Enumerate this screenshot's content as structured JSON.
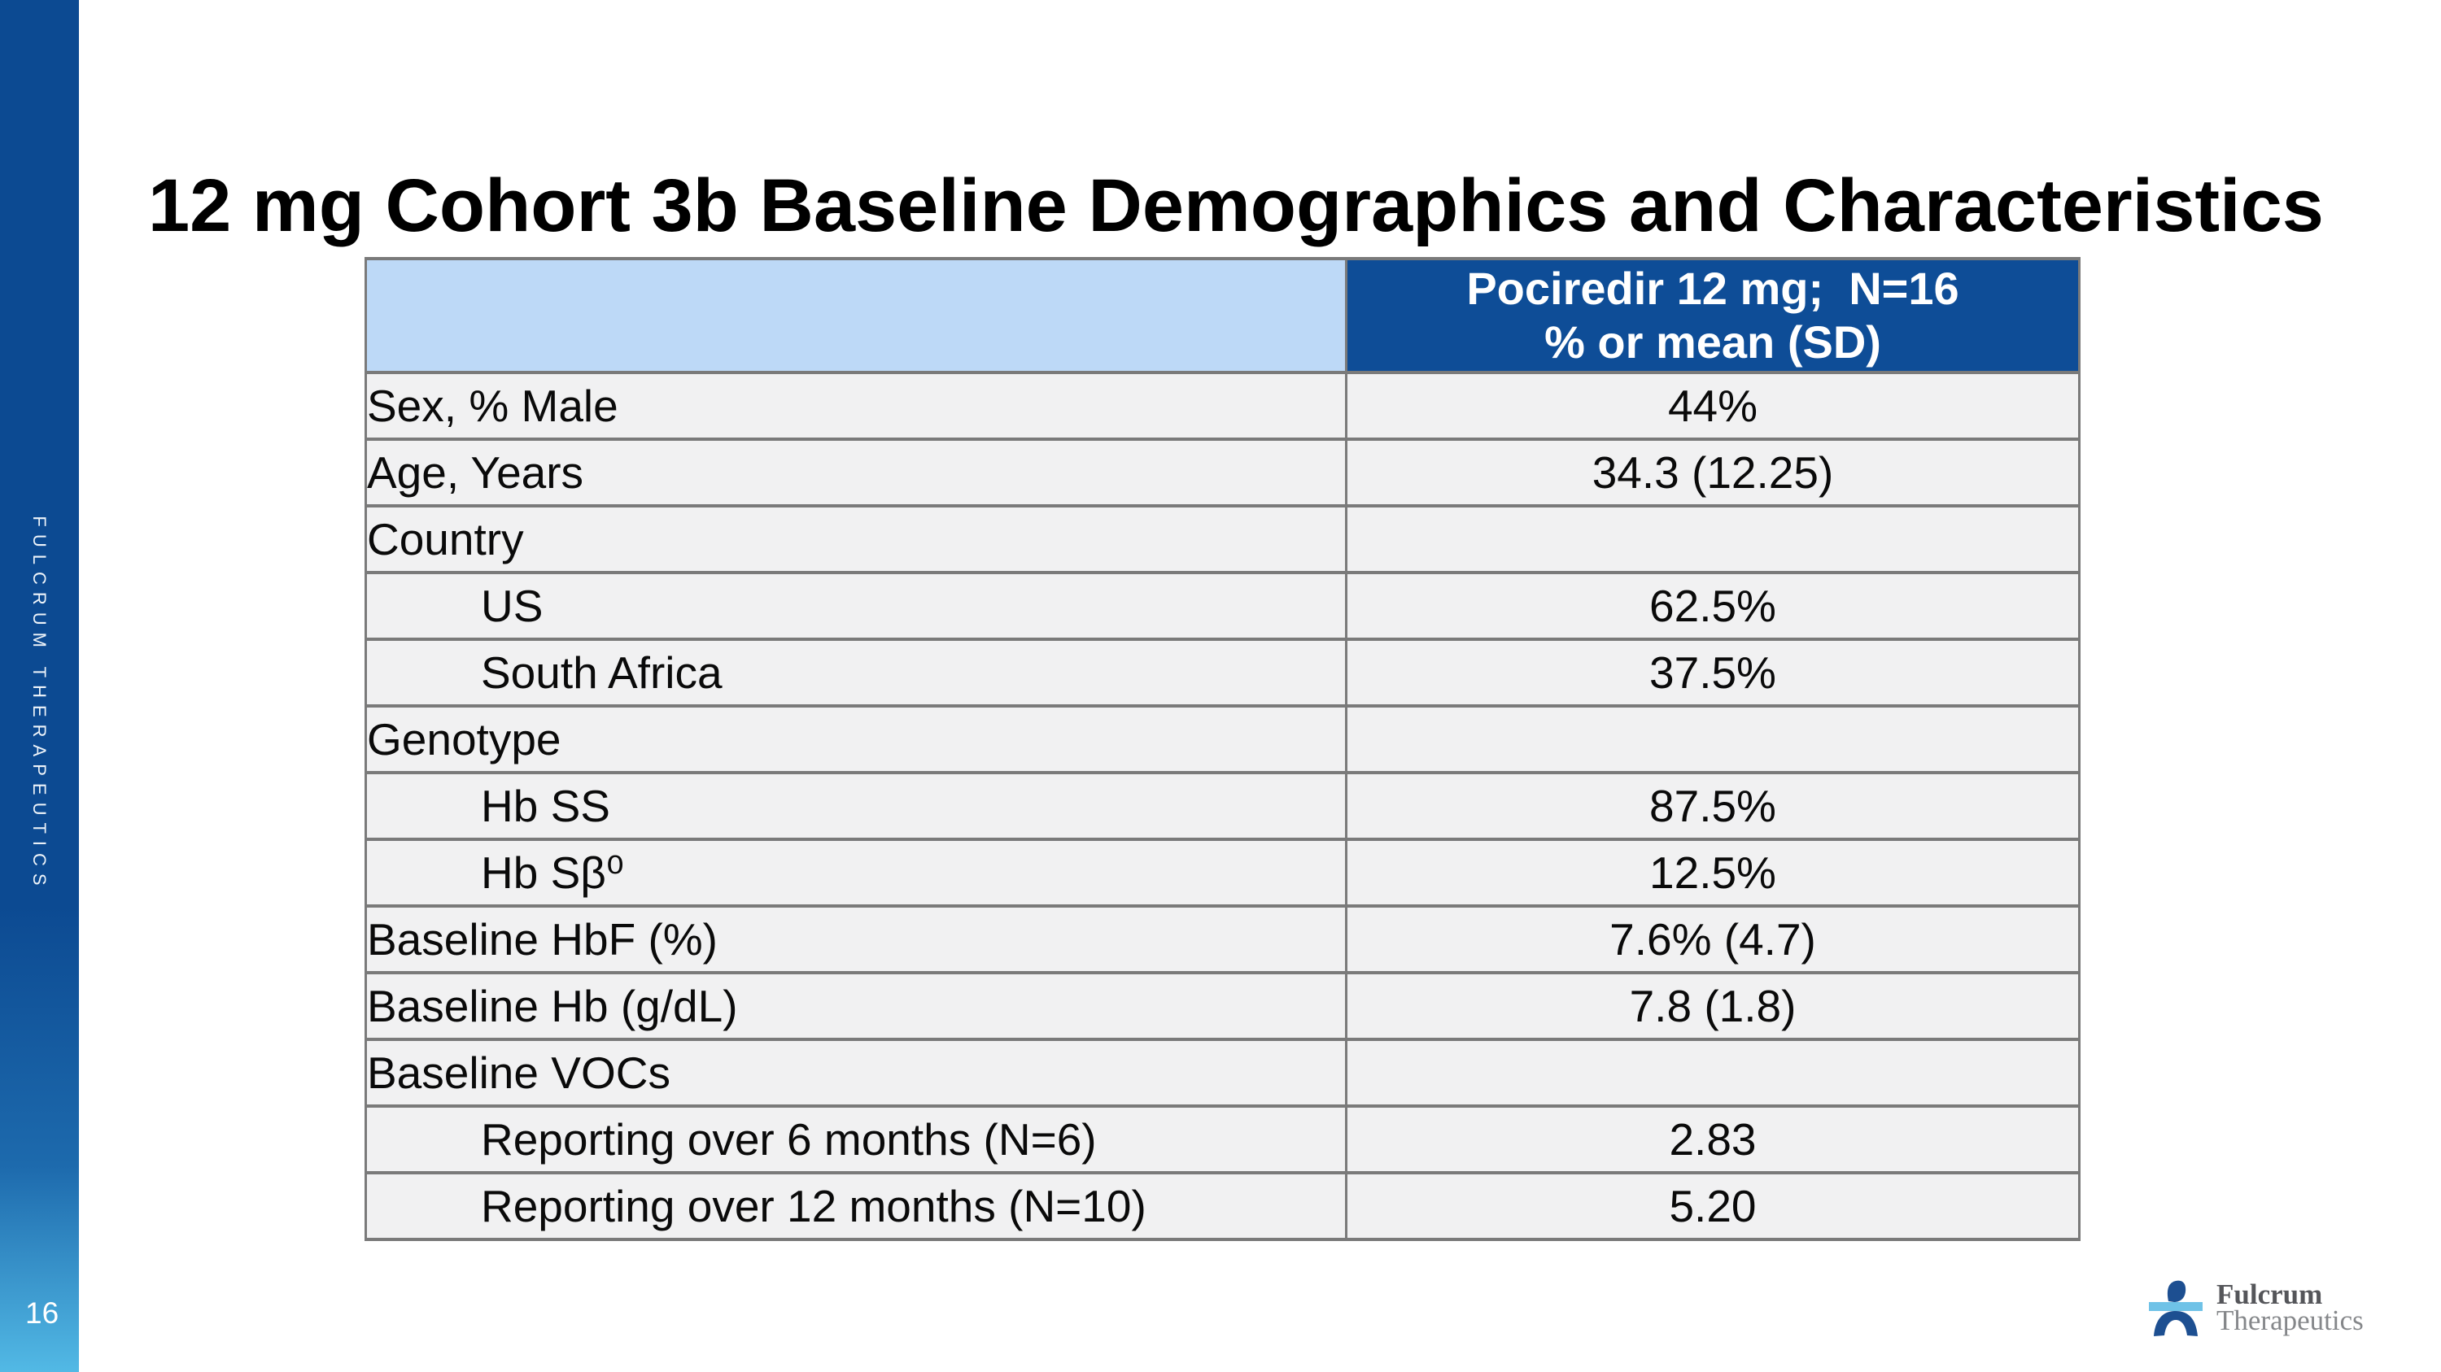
{
  "slide": {
    "title": "12 mg Cohort 3b Baseline Demographics and Characteristics",
    "page_number": "16",
    "sidebar_text": "FULCRUM THERAPEUTICS",
    "colors": {
      "sidebar_top": "#0c4a92",
      "sidebar_bottom": "#52b9e5",
      "header_dark_blue": "#0e4d97",
      "header_light_blue": "#bdd9f7",
      "row_background": "#f1f1f2",
      "table_border": "#7a7a7a",
      "logo_dark_blue": "#1d4f91",
      "logo_light_blue": "#6fc2e7"
    }
  },
  "table": {
    "header": {
      "col2_line1": "Pociredir 12 mg;  N=16",
      "col2_line2": "% or mean (SD)"
    },
    "rows": [
      {
        "label": "Sex, % Male",
        "value": "44%",
        "indent": false
      },
      {
        "label": "Age, Years",
        "value": "34.3 (12.25)",
        "indent": false
      },
      {
        "label": "Country",
        "value": "",
        "indent": false
      },
      {
        "label": "US",
        "value": "62.5%",
        "indent": true
      },
      {
        "label": "South Africa",
        "value": "37.5%",
        "indent": true
      },
      {
        "label": "Genotype",
        "value": "",
        "indent": false
      },
      {
        "label": "Hb SS",
        "value": "87.5%",
        "indent": true
      },
      {
        "label": "Hb Sβ⁰",
        "value": "12.5%",
        "indent": true
      },
      {
        "label": "Baseline HbF (%)",
        "value": "7.6% (4.7)",
        "indent": false
      },
      {
        "label": "Baseline Hb (g/dL)",
        "value": "7.8 (1.8)",
        "indent": false
      },
      {
        "label": "Baseline VOCs",
        "value": "",
        "indent": false
      },
      {
        "label": "Reporting over 6 months (N=6)",
        "value": "2.83",
        "indent": true
      },
      {
        "label": "Reporting over 12 months (N=10)",
        "value": "5.20",
        "indent": true
      }
    ]
  },
  "logo": {
    "line1": "Fulcrum",
    "line2": "Therapeutics"
  }
}
